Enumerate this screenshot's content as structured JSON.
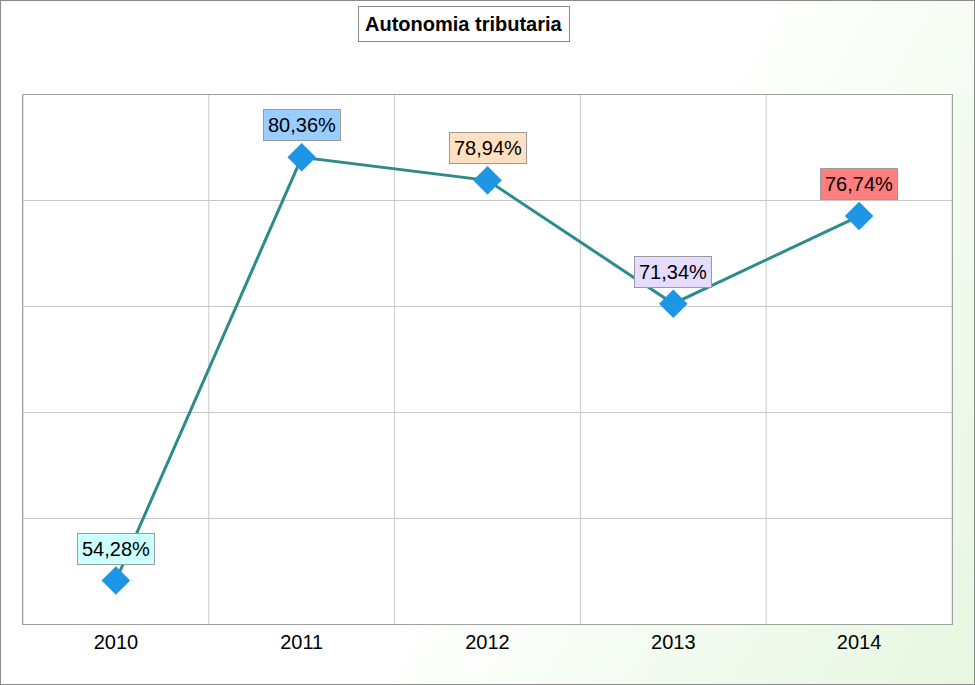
{
  "chart_data": {
    "type": "line",
    "title": "Autonomia tributaria",
    "categories": [
      "2010",
      "2011",
      "2012",
      "2013",
      "2014"
    ],
    "values": [
      54.28,
      80.36,
      78.94,
      71.34,
      76.74
    ],
    "value_labels": [
      "54,28%",
      "80,36%",
      "78,94%",
      "71,34%",
      "76,74%"
    ],
    "data_labels": true,
    "color": "#2e8b8b",
    "marker": "diamond",
    "colors": [
      "#ccffff",
      "#99ccff",
      "#ffe0c0",
      "#e6dcff",
      "#ff7f7f"
    ],
    "ylim": [
      51.6,
      84.2
    ],
    "yticks": [
      51.6,
      58.12,
      64.64,
      71.16,
      77.68,
      84.2
    ],
    "grid": true,
    "tick_labels": "x"
  }
}
